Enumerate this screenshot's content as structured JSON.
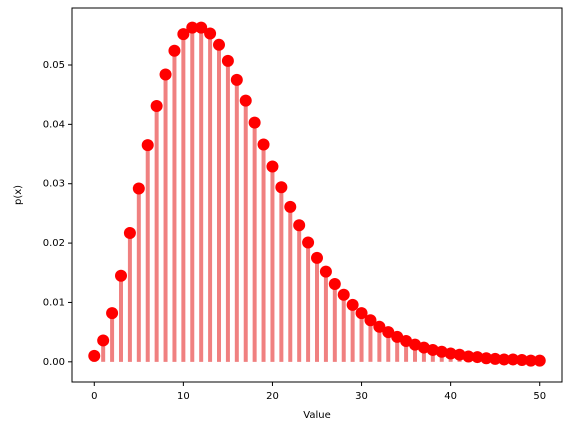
{
  "chart_data": {
    "type": "stem",
    "xlabel": "Value",
    "ylabel": "p(x)",
    "x": [
      0,
      1,
      2,
      3,
      4,
      5,
      6,
      7,
      8,
      9,
      10,
      11,
      12,
      13,
      14,
      15,
      16,
      17,
      18,
      19,
      20,
      21,
      22,
      23,
      24,
      25,
      26,
      27,
      28,
      29,
      30,
      31,
      32,
      33,
      34,
      35,
      36,
      37,
      38,
      39,
      40,
      41,
      42,
      43,
      44,
      45,
      46,
      47,
      48,
      49,
      50
    ],
    "values": [
      0.001,
      0.0036,
      0.0082,
      0.0145,
      0.0217,
      0.0292,
      0.0365,
      0.0431,
      0.0484,
      0.0524,
      0.0552,
      0.0563,
      0.0563,
      0.0553,
      0.0534,
      0.0507,
      0.0475,
      0.044,
      0.0403,
      0.0366,
      0.0329,
      0.0294,
      0.0261,
      0.023,
      0.0201,
      0.0175,
      0.0152,
      0.0131,
      0.0113,
      0.0096,
      0.0082,
      0.007,
      0.0059,
      0.005,
      0.0042,
      0.0035,
      0.0029,
      0.0024,
      0.002,
      0.0017,
      0.0014,
      0.0012,
      0.0009,
      0.0008,
      0.0006,
      0.0005,
      0.0004,
      0.0004,
      0.0003,
      0.0002,
      0.0002
    ],
    "color": "#ff0000",
    "stem_color": "#f08080",
    "xlim": [
      -2.5,
      52.5
    ],
    "xticks": [
      0,
      10,
      20,
      30,
      40,
      50
    ],
    "ylim": [
      -0.0034,
      0.0596
    ],
    "yticks": [
      {
        "value": 0,
        "label": "0.00"
      },
      0.01,
      0.02,
      0.03,
      0.04,
      0.05
    ]
  }
}
